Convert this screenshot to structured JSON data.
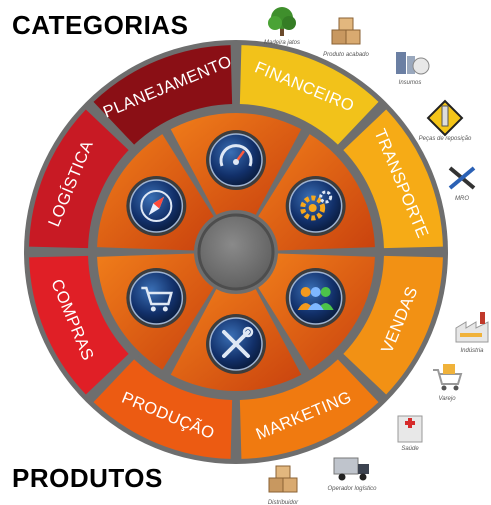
{
  "headings": {
    "top": "CATEGORIAS",
    "bottom": "PRODUTOS"
  },
  "categories": [
    {
      "label": "FINANCEIRO",
      "color": "#f2c21a"
    },
    {
      "label": "TRANSPORTE",
      "color": "#f6ab16"
    },
    {
      "label": "VENDAS",
      "color": "#f29114"
    },
    {
      "label": "MARKETING",
      "color": "#f07a10"
    },
    {
      "label": "PRODUÇÃO",
      "color": "#ec5b12"
    },
    {
      "label": "COMPRAS",
      "color": "#e01f26"
    },
    {
      "label": "LOGÍSTICA",
      "color": "#c81a24"
    },
    {
      "label": "PLANEJAMENTO",
      "color": "#8a0f15"
    }
  ],
  "center_icons": [
    {
      "icon": "speedometer-icon"
    },
    {
      "icon": "gears-icon"
    },
    {
      "icon": "people-icon"
    },
    {
      "icon": "tools-icon"
    },
    {
      "icon": "shopping-cart-icon"
    },
    {
      "icon": "compass-icon"
    }
  ],
  "products": [
    {
      "label": "Madeira jatos",
      "icon": "tree-icon"
    },
    {
      "label": "Produto acabado",
      "icon": "boxes-icon"
    },
    {
      "label": "Insumos",
      "icon": "materials-icon"
    },
    {
      "label": "Peças de reposição",
      "icon": "spark-plug-icon"
    },
    {
      "label": "MRO",
      "icon": "tools-icon"
    },
    {
      "label": "Indústria",
      "icon": "factory-icon"
    },
    {
      "label": "Varejo",
      "icon": "cart-icon"
    },
    {
      "label": "Saúde",
      "icon": "hospital-icon"
    },
    {
      "label": "Operador logístico",
      "icon": "truck-icon"
    },
    {
      "label": "Distribuidor",
      "icon": "box-stack-icon"
    }
  ]
}
